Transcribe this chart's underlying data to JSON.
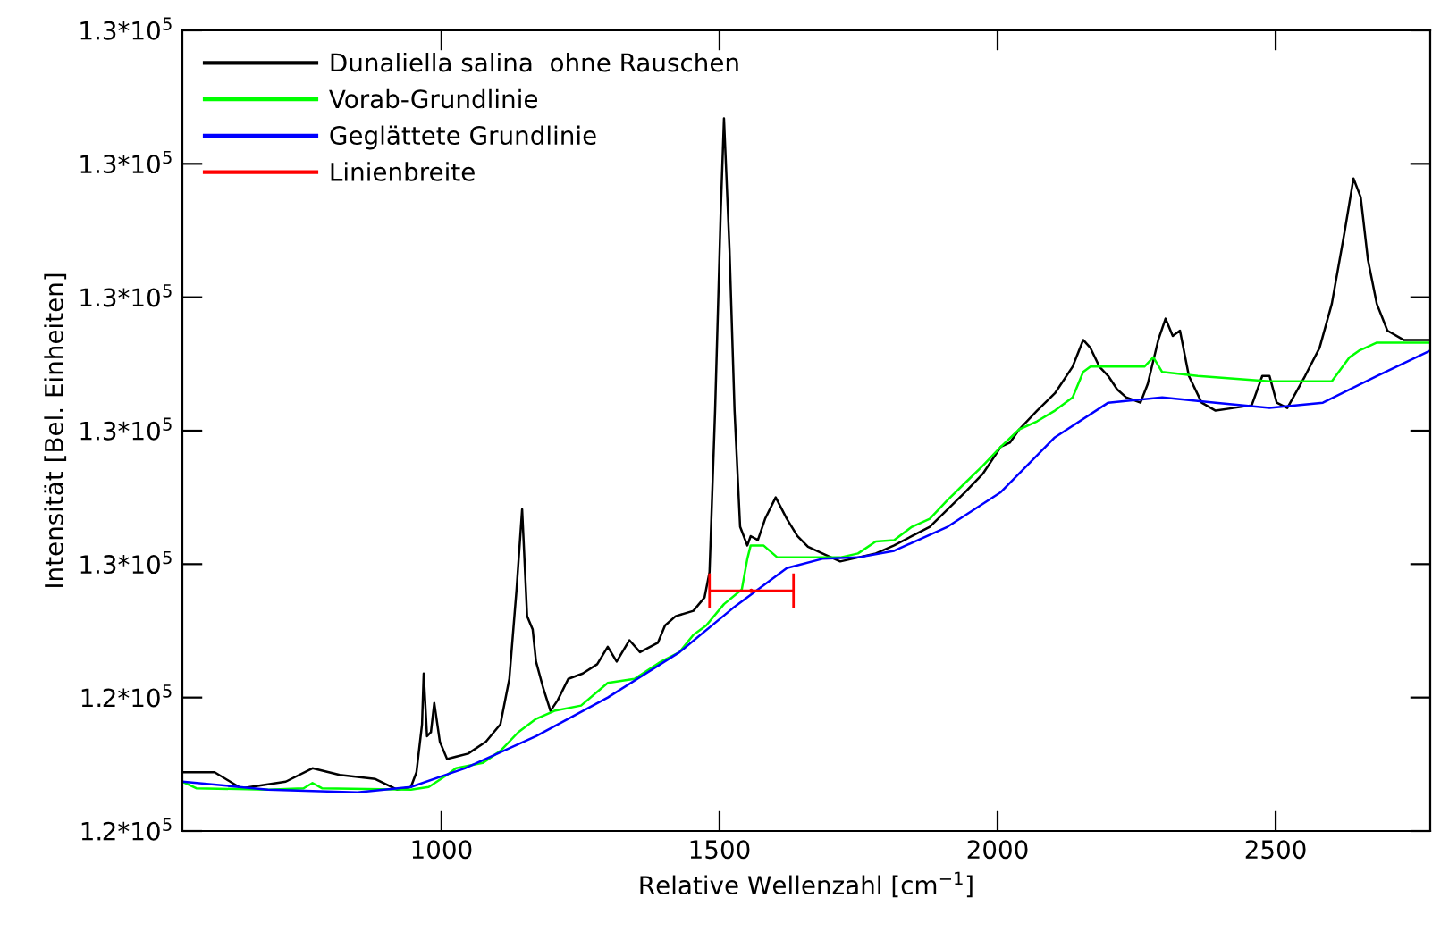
{
  "chart_data": {
    "type": "line",
    "xlabel": "Relative Wellenzahl [cm$^{−1}$]",
    "ylabel": "Intensität [Bel. Einheiten]",
    "xlim": [
      534,
      2778
    ],
    "xticks": [
      1000,
      1500,
      2000,
      2500
    ],
    "ylim": [
      124000,
      130000
    ],
    "yticks": [
      {
        "value": 124000,
        "label": "1.2*10$^{5}$"
      },
      {
        "value": 125000,
        "label": "1.2*10$^{5}$"
      },
      {
        "value": 126000,
        "label": "1.3*10$^{5}$"
      },
      {
        "value": 127000,
        "label": "1.3*10$^{5}$"
      },
      {
        "value": 128000,
        "label": "1.3*10$^{5}$"
      },
      {
        "value": 129000,
        "label": "1.3*10$^{5}$"
      },
      {
        "value": 130000,
        "label": "1.3*10$^{5}$"
      }
    ],
    "grid": false,
    "legend": "top left",
    "marker": "none",
    "line_style": "solid",
    "series": [
      {
        "name": "Dunaliella salina  ohne Rauschen",
        "color": "#000000",
        "x": [
          534,
          592,
          640,
          720,
          768,
          817,
          881,
          920,
          945,
          955,
          965,
          968,
          974,
          981,
          987,
          997,
          1010,
          1048,
          1080,
          1106,
          1122,
          1135,
          1145,
          1154,
          1164,
          1170,
          1183,
          1196,
          1209,
          1228,
          1254,
          1280,
          1299,
          1315,
          1338,
          1357,
          1389,
          1402,
          1421,
          1453,
          1473,
          1482,
          1492,
          1502,
          1508,
          1518,
          1527,
          1537,
          1550,
          1556,
          1569,
          1582,
          1601,
          1621,
          1640,
          1659,
          1685,
          1717,
          1749,
          1781,
          1814,
          1846,
          1878,
          1910,
          1942,
          1974,
          2006,
          2022,
          2039,
          2071,
          2103,
          2135,
          2154,
          2167,
          2183,
          2199,
          2215,
          2231,
          2257,
          2270,
          2289,
          2302,
          2315,
          2328,
          2344,
          2367,
          2392,
          2424,
          2457,
          2476,
          2489,
          2502,
          2521,
          2553,
          2579,
          2601,
          2624,
          2640,
          2653,
          2666,
          2682,
          2701,
          2730,
          2778
        ],
        "values": [
          124440,
          124440,
          124320,
          124370,
          124470,
          124420,
          124390,
          124310,
          124330,
          124440,
          124800,
          125180,
          124710,
          124740,
          124960,
          124670,
          124540,
          124580,
          124670,
          124800,
          125140,
          125810,
          126410,
          125610,
          125510,
          125270,
          125070,
          124900,
          124980,
          125140,
          125180,
          125250,
          125380,
          125270,
          125430,
          125340,
          125410,
          125540,
          125610,
          125650,
          125750,
          125940,
          127150,
          128620,
          129340,
          128350,
          127150,
          126280,
          126140,
          126210,
          126180,
          126340,
          126500,
          126340,
          126210,
          126130,
          126080,
          126020,
          126050,
          126080,
          126140,
          126210,
          126280,
          126410,
          126540,
          126680,
          126880,
          126910,
          127010,
          127150,
          127280,
          127480,
          127680,
          127620,
          127480,
          127410,
          127310,
          127250,
          127210,
          127350,
          127680,
          127840,
          127710,
          127750,
          127410,
          127210,
          127150,
          127170,
          127190,
          127410,
          127410,
          127210,
          127170,
          127410,
          127620,
          127950,
          128490,
          128890,
          128750,
          128280,
          127950,
          127750,
          127680,
          127680
        ]
      },
      {
        "name": "Vorab-Grundlinie",
        "color": "#00ff00",
        "x": [
          534,
          559,
          688,
          752,
          768,
          785,
          945,
          977,
          1010,
          1026,
          1074,
          1106,
          1138,
          1170,
          1203,
          1251,
          1299,
          1347,
          1395,
          1428,
          1453,
          1476,
          1508,
          1540,
          1550,
          1556,
          1579,
          1604,
          1717,
          1749,
          1781,
          1814,
          1846,
          1878,
          1910,
          1942,
          1974,
          2006,
          2039,
          2071,
          2103,
          2135,
          2154,
          2167,
          2264,
          2280,
          2296,
          2360,
          2489,
          2601,
          2633,
          2650,
          2682,
          2778
        ],
        "values": [
          124370,
          124320,
          124310,
          124320,
          124360,
          124320,
          124310,
          124330,
          124420,
          124470,
          124510,
          124600,
          124740,
          124840,
          124900,
          124940,
          125110,
          125140,
          125270,
          125340,
          125470,
          125540,
          125700,
          125810,
          126040,
          126140,
          126140,
          126050,
          126050,
          126080,
          126170,
          126180,
          126280,
          126340,
          126480,
          126610,
          126740,
          126880,
          127010,
          127070,
          127150,
          127250,
          127440,
          127480,
          127480,
          127550,
          127440,
          127410,
          127370,
          127370,
          127550,
          127600,
          127660,
          127660
        ]
      },
      {
        "name": "Geglättete Grundlinie",
        "color": "#0000ff",
        "x": [
          534,
          688,
          849,
          945,
          1042,
          1170,
          1299,
          1428,
          1524,
          1621,
          1685,
          1749,
          1814,
          1910,
          2006,
          2103,
          2199,
          2296,
          2392,
          2489,
          2585,
          2682,
          2778
        ],
        "values": [
          124370,
          124310,
          124290,
          124330,
          124470,
          124710,
          125000,
          125340,
          125670,
          125970,
          126040,
          126050,
          126100,
          126280,
          126540,
          126950,
          127210,
          127250,
          127210,
          127170,
          127210,
          127410,
          127600
        ]
      },
      {
        "name": "Linienbreite",
        "color": "#ff0000",
        "x": [
          1557
        ],
        "values": [
          125800
        ],
        "xerrors": [
          [
            1482,
            1633
          ]
        ]
      }
    ]
  }
}
